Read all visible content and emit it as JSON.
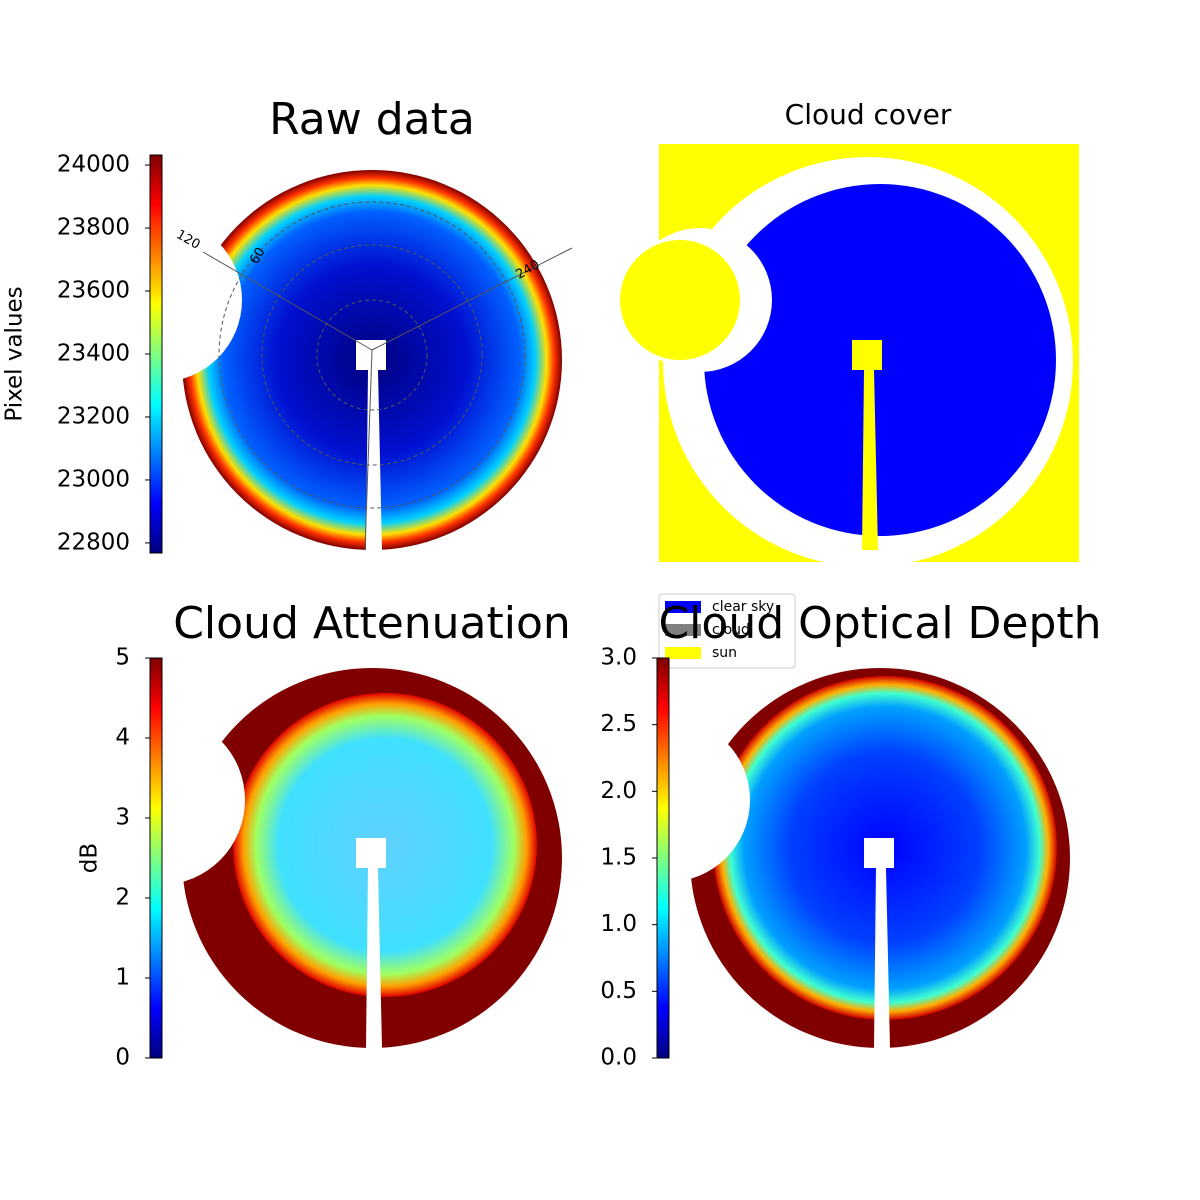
{
  "chart_data": [
    {
      "type": "image",
      "title": "Raw data",
      "colorbar_label": "Pixel values",
      "colormap": "jet",
      "ylim": [
        22768,
        24032
      ],
      "yticks": [
        22800,
        23000,
        23200,
        23400,
        23600,
        23800,
        24000
      ],
      "annotations": [
        "120",
        "60",
        "240"
      ]
    },
    {
      "type": "categorical",
      "title": "Cloud cover",
      "series": [
        {
          "name": "clear sky",
          "color": "#0000ff"
        },
        {
          "name": "cloud",
          "color": "#808080"
        },
        {
          "name": "sun",
          "color": "#ffff00"
        }
      ]
    },
    {
      "type": "image",
      "title": "Cloud Attenuation",
      "colorbar_label": "dB",
      "colormap": "jet",
      "ylim": [
        0,
        5
      ],
      "yticks": [
        0,
        1,
        2,
        3,
        4,
        5
      ]
    },
    {
      "type": "image",
      "title": "Cloud Optical Depth",
      "colormap": "jet",
      "ylim": [
        0,
        3
      ],
      "yticks": [
        {
          "value": 0,
          "label": "0.0"
        },
        0.5,
        {
          "value": 1,
          "label": "1.0"
        },
        1.5,
        {
          "value": 2,
          "label": "2.0"
        },
        2.5,
        {
          "value": 3,
          "label": "3.0"
        }
      ]
    }
  ]
}
